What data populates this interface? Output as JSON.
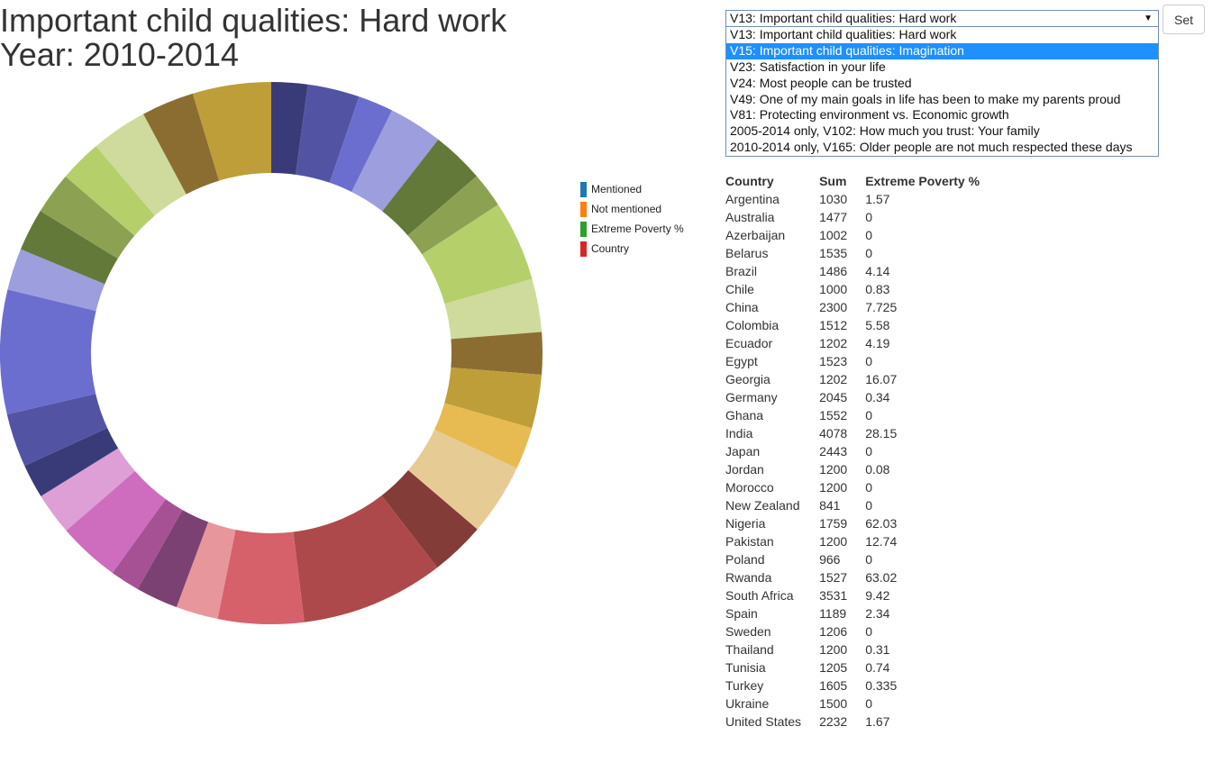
{
  "header": {
    "title_line1": "Important child qualities: Hard work",
    "title_line2": "Year: 2010-2014"
  },
  "legend": [
    {
      "label": "Mentioned",
      "color": "#1f77b4"
    },
    {
      "label": "Not mentioned",
      "color": "#ff7f0e"
    },
    {
      "label": "Extreme Poverty %",
      "color": "#2ca02c"
    },
    {
      "label": "Country",
      "color": "#d62728"
    }
  ],
  "dropdown": {
    "selected": "V13: Important child qualities: Hard work",
    "options": [
      "V13: Important child qualities: Hard work",
      "V15: Important child qualities: Imagination",
      "V23: Satisfaction in your life",
      "V24: Most people can be trusted",
      "V49: One of my main goals in life has been to make my parents proud",
      "V81: Protecting environment vs. Economic growth",
      "2005-2014 only, V102: How much you trust: Your family",
      "2010-2014 only, V165: Older people are not much respected these days"
    ],
    "highlighted_index": 1
  },
  "set_button": {
    "label": "Set"
  },
  "table": {
    "headers": [
      "Country",
      "Sum",
      "Extreme Poverty %"
    ],
    "rows": [
      [
        "Argentina",
        "1030",
        "1.57"
      ],
      [
        "Australia",
        "1477",
        "0"
      ],
      [
        "Azerbaijan",
        "1002",
        "0"
      ],
      [
        "Belarus",
        "1535",
        "0"
      ],
      [
        "Brazil",
        "1486",
        "4.14"
      ],
      [
        "Chile",
        "1000",
        "0.83"
      ],
      [
        "China",
        "2300",
        "7.725"
      ],
      [
        "Colombia",
        "1512",
        "5.58"
      ],
      [
        "Ecuador",
        "1202",
        "4.19"
      ],
      [
        "Egypt",
        "1523",
        "0"
      ],
      [
        "Georgia",
        "1202",
        "16.07"
      ],
      [
        "Germany",
        "2045",
        "0.34"
      ],
      [
        "Ghana",
        "1552",
        "0"
      ],
      [
        "India",
        "4078",
        "28.15"
      ],
      [
        "Japan",
        "2443",
        "0"
      ],
      [
        "Jordan",
        "1200",
        "0.08"
      ],
      [
        "Morocco",
        "1200",
        "0"
      ],
      [
        "New Zealand",
        "841",
        "0"
      ],
      [
        "Nigeria",
        "1759",
        "62.03"
      ],
      [
        "Pakistan",
        "1200",
        "12.74"
      ],
      [
        "Poland",
        "966",
        "0"
      ],
      [
        "Rwanda",
        "1527",
        "63.02"
      ],
      [
        "South Africa",
        "3531",
        "9.42"
      ],
      [
        "Spain",
        "1189",
        "2.34"
      ],
      [
        "Sweden",
        "1206",
        "0"
      ],
      [
        "Thailand",
        "1200",
        "0.31"
      ],
      [
        "Tunisia",
        "1205",
        "0.74"
      ],
      [
        "Turkey",
        "1605",
        "0.335"
      ],
      [
        "Ukraine",
        "1500",
        "0"
      ],
      [
        "United States",
        "2232",
        "1.67"
      ]
    ]
  },
  "chart_data": {
    "type": "pie",
    "donut": true,
    "categories": [
      "Argentina",
      "Australia",
      "Azerbaijan",
      "Belarus",
      "Brazil",
      "Chile",
      "China",
      "Colombia",
      "Ecuador",
      "Egypt",
      "Georgia",
      "Germany",
      "Ghana",
      "India",
      "Japan",
      "Jordan",
      "Morocco",
      "New Zealand",
      "Nigeria",
      "Pakistan",
      "Poland",
      "Rwanda",
      "South Africa",
      "Spain",
      "Sweden",
      "Thailand",
      "Tunisia",
      "Turkey",
      "Ukraine",
      "United States"
    ],
    "values": [
      1030,
      1477,
      1002,
      1535,
      1486,
      1000,
      2300,
      1512,
      1202,
      1523,
      1202,
      2045,
      1552,
      4078,
      2443,
      1200,
      1200,
      841,
      1759,
      1200,
      966,
      1527,
      3531,
      1189,
      1206,
      1200,
      1205,
      1605,
      1500,
      2232
    ],
    "colors": [
      "#393b79",
      "#5254a3",
      "#6b6ecf",
      "#9c9ede",
      "#637939",
      "#8ca252",
      "#b5cf6b",
      "#cedb9c",
      "#8c6d31",
      "#bd9e39",
      "#e7ba52",
      "#e7cb94",
      "#843c39",
      "#ad494a",
      "#d6616b",
      "#e7969c",
      "#7b4173",
      "#a55194",
      "#ce6dbd",
      "#de9ed6",
      "#393b79",
      "#5254a3",
      "#6b6ecf",
      "#9c9ede",
      "#637939",
      "#8ca252",
      "#b5cf6b",
      "#cedb9c",
      "#8c6d31",
      "#bd9e39"
    ]
  }
}
